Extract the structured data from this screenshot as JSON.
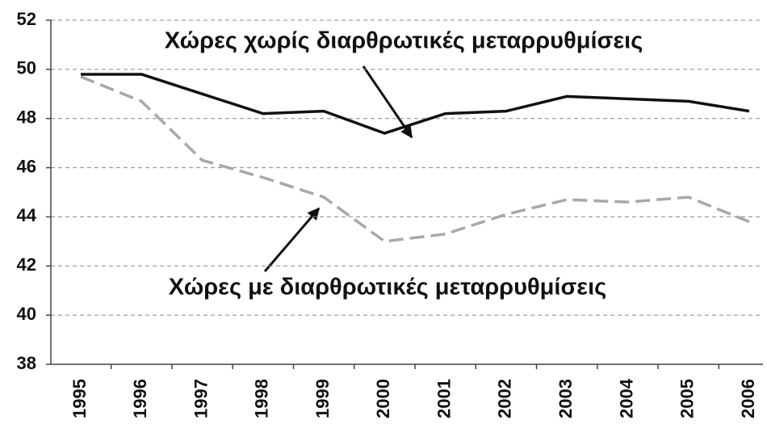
{
  "chart_data": {
    "type": "line",
    "categories": [
      "1995",
      "1996",
      "1997",
      "1998",
      "1999",
      "2000",
      "2001",
      "2002",
      "2003",
      "2004",
      "2005",
      "2006"
    ],
    "series": [
      {
        "name": "Χώρες χωρίς διαρθρωτικές μεταρρυθμίσεις",
        "color": "#111111",
        "dash": false,
        "values": [
          49.8,
          49.8,
          49.0,
          48.2,
          48.3,
          47.4,
          48.2,
          48.3,
          48.9,
          48.8,
          48.7,
          48.3
        ]
      },
      {
        "name": "Χώρες με διαρθρωτικές μεταρρυθμίσεις",
        "color": "#a8a8a8",
        "dash": true,
        "values": [
          49.7,
          48.7,
          46.3,
          45.6,
          44.8,
          43.0,
          43.3,
          44.1,
          44.7,
          44.6,
          44.8,
          43.8
        ]
      }
    ],
    "ylim": [
      38,
      52
    ],
    "yticks": [
      38,
      40,
      42,
      44,
      46,
      48,
      50,
      52
    ],
    "grid": true
  }
}
